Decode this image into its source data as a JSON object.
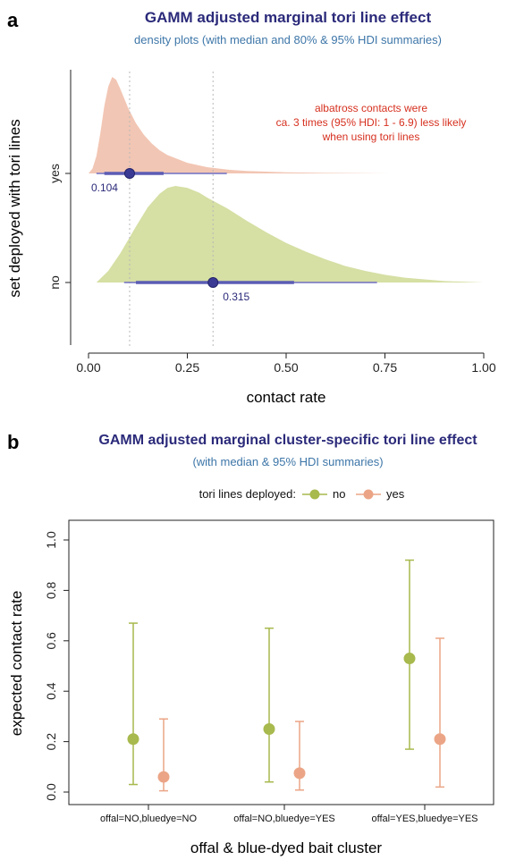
{
  "chart_data": [
    {
      "panel": "a",
      "type": "area",
      "title": "GAMM adjusted marginal tori line effect",
      "subtitle": "density plots (with median and 80% & 95% HDI summaries)",
      "xlabel": "contact rate",
      "ylabel": "set deployed with tori lines",
      "xlim": [
        0,
        1
      ],
      "x_ticks": [
        "0.00",
        "0.25",
        "0.50",
        "0.75",
        "1.00"
      ],
      "categories": [
        "yes",
        "no"
      ],
      "annotation": [
        "albatross contacts were",
        "ca. 3 times (95% HDI: 1 - 6.9) less likely",
        "when using tori lines"
      ],
      "series": [
        {
          "name": "yes",
          "color": "#f2c6b4",
          "median": 0.104,
          "median_label": "0.104",
          "hdi80": [
            0.04,
            0.19
          ],
          "hdi95": [
            0.02,
            0.35
          ],
          "density_x": [
            0.0,
            0.01,
            0.02,
            0.03,
            0.04,
            0.05,
            0.06,
            0.07,
            0.08,
            0.09,
            0.1,
            0.12,
            0.14,
            0.16,
            0.18,
            0.2,
            0.25,
            0.3,
            0.35,
            0.4,
            0.5,
            0.6,
            0.7,
            0.76
          ],
          "density_y": [
            0.0,
            0.05,
            0.18,
            0.42,
            0.7,
            0.9,
            1.0,
            0.97,
            0.88,
            0.78,
            0.68,
            0.52,
            0.4,
            0.31,
            0.24,
            0.19,
            0.11,
            0.065,
            0.04,
            0.025,
            0.012,
            0.006,
            0.002,
            0.0
          ]
        },
        {
          "name": "no",
          "color": "#d6dfa4",
          "median": 0.315,
          "median_label": "0.315",
          "hdi80": [
            0.12,
            0.52
          ],
          "hdi95": [
            0.09,
            0.73
          ],
          "density_x": [
            0.02,
            0.05,
            0.08,
            0.1,
            0.12,
            0.15,
            0.18,
            0.2,
            0.22,
            0.25,
            0.28,
            0.3,
            0.35,
            0.4,
            0.45,
            0.5,
            0.55,
            0.6,
            0.65,
            0.7,
            0.75,
            0.8,
            0.9,
            1.0
          ],
          "density_y": [
            0.0,
            0.12,
            0.3,
            0.44,
            0.58,
            0.78,
            0.92,
            0.98,
            1.0,
            0.98,
            0.93,
            0.88,
            0.77,
            0.64,
            0.52,
            0.41,
            0.32,
            0.24,
            0.17,
            0.12,
            0.08,
            0.05,
            0.015,
            0.0
          ]
        }
      ]
    },
    {
      "panel": "b",
      "type": "scatter",
      "title": "GAMM adjusted marginal cluster-specific tori line effect",
      "subtitle": "(with median & 95% HDI summaries)",
      "legend_title": "tori lines deployed:",
      "legend_position": "top",
      "xlabel": "offal & blue-dyed bait cluster",
      "ylabel": "expected contact rate",
      "ylim": [
        0,
        1
      ],
      "y_ticks": [
        "0.0",
        "0.2",
        "0.4",
        "0.6",
        "0.8",
        "1.0"
      ],
      "categories": [
        "offal=NO,bluedye=NO",
        "offal=NO,bluedye=YES",
        "offal=YES,bluedye=YES"
      ],
      "series": [
        {
          "name": "no",
          "color": "#a8b94d",
          "median": [
            0.21,
            0.25,
            0.53
          ],
          "lower": [
            0.03,
            0.04,
            0.17
          ],
          "upper": [
            0.67,
            0.65,
            0.92
          ]
        },
        {
          "name": "yes",
          "color": "#eba586",
          "median": [
            0.06,
            0.075,
            0.21
          ],
          "lower": [
            0.005,
            0.008,
            0.02
          ],
          "upper": [
            0.29,
            0.28,
            0.61
          ]
        }
      ]
    }
  ]
}
